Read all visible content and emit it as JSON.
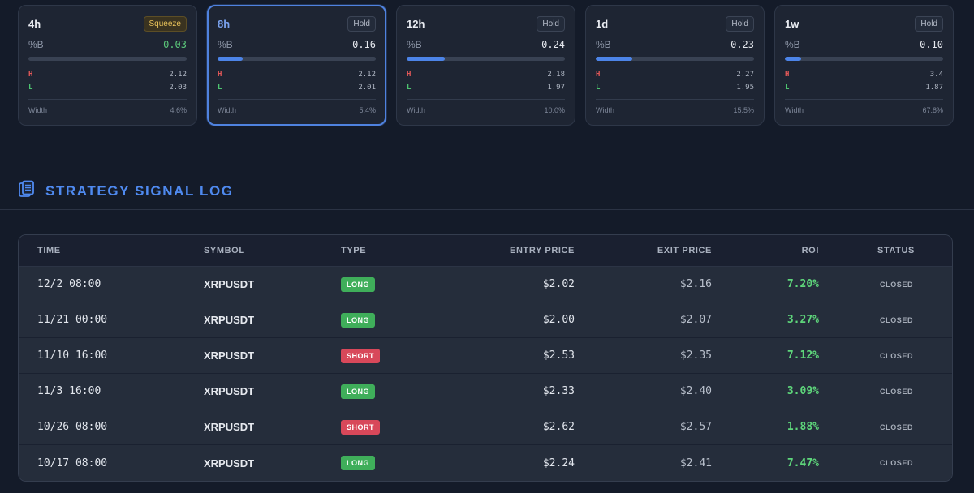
{
  "timeframes": [
    {
      "tf": "4h",
      "signal": "Squeeze",
      "pb_label": "%B",
      "pb": "-0.03",
      "fill_pct": 0,
      "h_label": "H",
      "h": "2.12",
      "l_label": "L",
      "l": "2.03",
      "width_label": "Width",
      "width": "4.6%"
    },
    {
      "tf": "8h",
      "signal": "Hold",
      "pb_label": "%B",
      "pb": "0.16",
      "fill_pct": 16,
      "h_label": "H",
      "h": "2.12",
      "l_label": "L",
      "l": "2.01",
      "width_label": "Width",
      "width": "5.4%"
    },
    {
      "tf": "12h",
      "signal": "Hold",
      "pb_label": "%B",
      "pb": "0.24",
      "fill_pct": 24,
      "h_label": "H",
      "h": "2.18",
      "l_label": "L",
      "l": "1.97",
      "width_label": "Width",
      "width": "10.0%"
    },
    {
      "tf": "1d",
      "signal": "Hold",
      "pb_label": "%B",
      "pb": "0.23",
      "fill_pct": 23,
      "h_label": "H",
      "h": "2.27",
      "l_label": "L",
      "l": "1.95",
      "width_label": "Width",
      "width": "15.5%"
    },
    {
      "tf": "1w",
      "signal": "Hold",
      "pb_label": "%B",
      "pb": "0.10",
      "fill_pct": 10,
      "h_label": "H",
      "h": "3.4",
      "l_label": "L",
      "l": "1.87",
      "width_label": "Width",
      "width": "67.8%"
    }
  ],
  "section": {
    "title": "STRATEGY SIGNAL LOG",
    "icon": "clipboard-icon"
  },
  "table": {
    "headers": {
      "time": "TIME",
      "symbol": "SYMBOL",
      "type": "TYPE",
      "entry": "ENTRY PRICE",
      "exit": "EXIT PRICE",
      "roi": "ROI",
      "status": "STATUS"
    },
    "rows": [
      {
        "time": "12/2 08:00",
        "symbol": "XRPUSDT",
        "type": "LONG",
        "entry": "$2.02",
        "exit": "$2.16",
        "roi": "7.20%",
        "status": "CLOSED"
      },
      {
        "time": "11/21 00:00",
        "symbol": "XRPUSDT",
        "type": "LONG",
        "entry": "$2.00",
        "exit": "$2.07",
        "roi": "3.27%",
        "status": "CLOSED"
      },
      {
        "time": "11/10 16:00",
        "symbol": "XRPUSDT",
        "type": "SHORT",
        "entry": "$2.53",
        "exit": "$2.35",
        "roi": "7.12%",
        "status": "CLOSED"
      },
      {
        "time": "11/3 16:00",
        "symbol": "XRPUSDT",
        "type": "LONG",
        "entry": "$2.33",
        "exit": "$2.40",
        "roi": "3.09%",
        "status": "CLOSED"
      },
      {
        "time": "10/26 08:00",
        "symbol": "XRPUSDT",
        "type": "SHORT",
        "entry": "$2.62",
        "exit": "$2.57",
        "roi": "1.88%",
        "status": "CLOSED"
      },
      {
        "time": "10/17 08:00",
        "symbol": "XRPUSDT",
        "type": "LONG",
        "entry": "$2.24",
        "exit": "$2.41",
        "roi": "7.47%",
        "status": "CLOSED"
      }
    ]
  },
  "colors": {
    "accent": "#4f8af0",
    "long": "#3fae5a",
    "short": "#d8485a",
    "roi_positive": "#5ed67b",
    "squeeze": "#e8c25a"
  }
}
